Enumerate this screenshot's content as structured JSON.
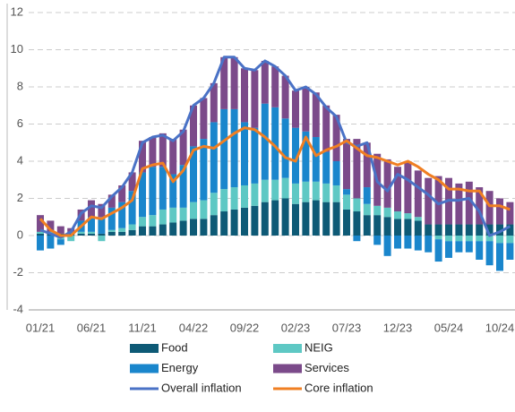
{
  "chart_data": {
    "type": "stacked-bar-line",
    "categories": [
      "01/21",
      null,
      null,
      null,
      null,
      "06/21",
      null,
      null,
      null,
      null,
      "11/21",
      null,
      null,
      null,
      null,
      "04/22",
      null,
      null,
      null,
      null,
      "09/22",
      null,
      null,
      null,
      null,
      "02/23",
      null,
      null,
      null,
      null,
      "07/23",
      null,
      null,
      null,
      null,
      "12/23",
      null,
      null,
      null,
      null,
      "05/24",
      null,
      null,
      null,
      null,
      "10/24",
      null
    ],
    "series": [
      {
        "name": "Food",
        "color": "#0e5a76",
        "kind": "bar",
        "values": [
          0.1,
          0.1,
          0.1,
          0.1,
          0.1,
          0.1,
          0.1,
          0.2,
          0.2,
          0.3,
          0.5,
          0.5,
          0.6,
          0.7,
          0.8,
          0.9,
          0.9,
          1.1,
          1.3,
          1.4,
          1.5,
          1.6,
          1.8,
          1.9,
          2.0,
          1.7,
          1.8,
          1.9,
          1.8,
          1.8,
          1.4,
          1.3,
          1.1,
          1.1,
          1.0,
          0.9,
          0.9,
          0.8,
          0.6,
          0.6,
          0.6,
          0.6,
          0.6,
          0.6,
          0.6,
          0.6,
          0.6
        ]
      },
      {
        "name": "NEIG",
        "color": "#5ec8c4",
        "kind": "bar",
        "values": [
          0.1,
          0.1,
          -0.2,
          -0.3,
          0.1,
          0.1,
          -0.3,
          0.1,
          0.2,
          0.3,
          0.5,
          0.6,
          0.8,
          0.8,
          0.7,
          0.9,
          1.0,
          1.2,
          1.2,
          1.2,
          1.2,
          1.2,
          1.2,
          1.1,
          1.1,
          1.1,
          1.1,
          1.0,
          1.0,
          0.9,
          0.8,
          0.7,
          0.6,
          0.5,
          0.5,
          0.4,
          0.3,
          0.2,
          0.0,
          -0.2,
          -0.3,
          -0.3,
          -0.3,
          -0.3,
          -0.3,
          -0.4,
          -0.4
        ]
      },
      {
        "name": "Energy",
        "color": "#1a86cc",
        "kind": "bar",
        "values": [
          -0.8,
          -0.7,
          -0.3,
          0.1,
          0.6,
          0.8,
          0.9,
          1.2,
          1.4,
          1.8,
          2.4,
          2.6,
          2.3,
          1.8,
          2.3,
          3.0,
          3.3,
          3.8,
          4.3,
          4.2,
          3.4,
          3.0,
          4.1,
          3.9,
          3.2,
          3.0,
          2.7,
          2.4,
          1.7,
          1.3,
          0.3,
          -0.3,
          0.9,
          -0.5,
          -1.1,
          -0.7,
          -0.7,
          -0.8,
          -0.9,
          -1.2,
          -0.9,
          -0.6,
          -0.6,
          -1.0,
          -1.3,
          -1.5,
          -0.9
        ]
      },
      {
        "name": "Services",
        "color": "#7b4a8a",
        "kind": "bar",
        "values": [
          0.9,
          0.6,
          0.4,
          0.2,
          0.6,
          0.9,
          0.7,
          0.7,
          0.9,
          1.0,
          1.7,
          1.6,
          1.8,
          1.9,
          1.9,
          2.2,
          2.2,
          2.1,
          2.8,
          2.8,
          2.9,
          3.1,
          2.3,
          2.2,
          2.3,
          2.0,
          2.4,
          2.4,
          2.5,
          2.5,
          2.7,
          3.2,
          2.4,
          2.8,
          2.6,
          2.4,
          2.8,
          2.5,
          2.5,
          2.6,
          2.5,
          2.2,
          2.3,
          2.0,
          1.8,
          1.4,
          1.2
        ]
      },
      {
        "name": "Overall inflation",
        "color": "#4a72c6",
        "kind": "line",
        "values": [
          0.3,
          0.1,
          -0.1,
          0.2,
          1.2,
          1.6,
          1.5,
          2.1,
          2.6,
          3.4,
          5.0,
          5.3,
          5.4,
          5.1,
          5.6,
          7.0,
          7.4,
          8.2,
          9.6,
          9.6,
          9.0,
          8.9,
          9.4,
          9.1,
          8.6,
          7.8,
          8.0,
          7.6,
          6.9,
          6.4,
          5.0,
          4.8,
          5.0,
          2.9,
          2.4,
          3.3,
          3.0,
          2.6,
          2.2,
          1.7,
          1.9,
          1.9,
          2.0,
          1.3,
          0.0,
          0.2,
          0.5
        ]
      },
      {
        "name": "Core inflation",
        "color": "#f07f22",
        "kind": "line",
        "values": [
          0.9,
          0.3,
          0.0,
          0.0,
          0.5,
          1.0,
          0.9,
          1.2,
          1.5,
          1.9,
          3.6,
          3.8,
          3.9,
          2.9,
          3.5,
          4.6,
          4.8,
          4.7,
          5.1,
          5.5,
          5.8,
          5.7,
          5.3,
          4.8,
          4.2,
          4.0,
          5.3,
          4.3,
          4.6,
          4.8,
          5.1,
          4.7,
          4.3,
          4.2,
          4.0,
          3.8,
          4.0,
          3.7,
          3.3,
          3.0,
          2.5,
          2.5,
          2.4,
          2.4,
          1.6,
          1.6,
          1.4
        ]
      }
    ],
    "ylim": [
      -4,
      12
    ],
    "yticks": [
      -4,
      -2,
      0,
      2,
      4,
      6,
      8,
      10,
      12
    ],
    "grid": true
  }
}
